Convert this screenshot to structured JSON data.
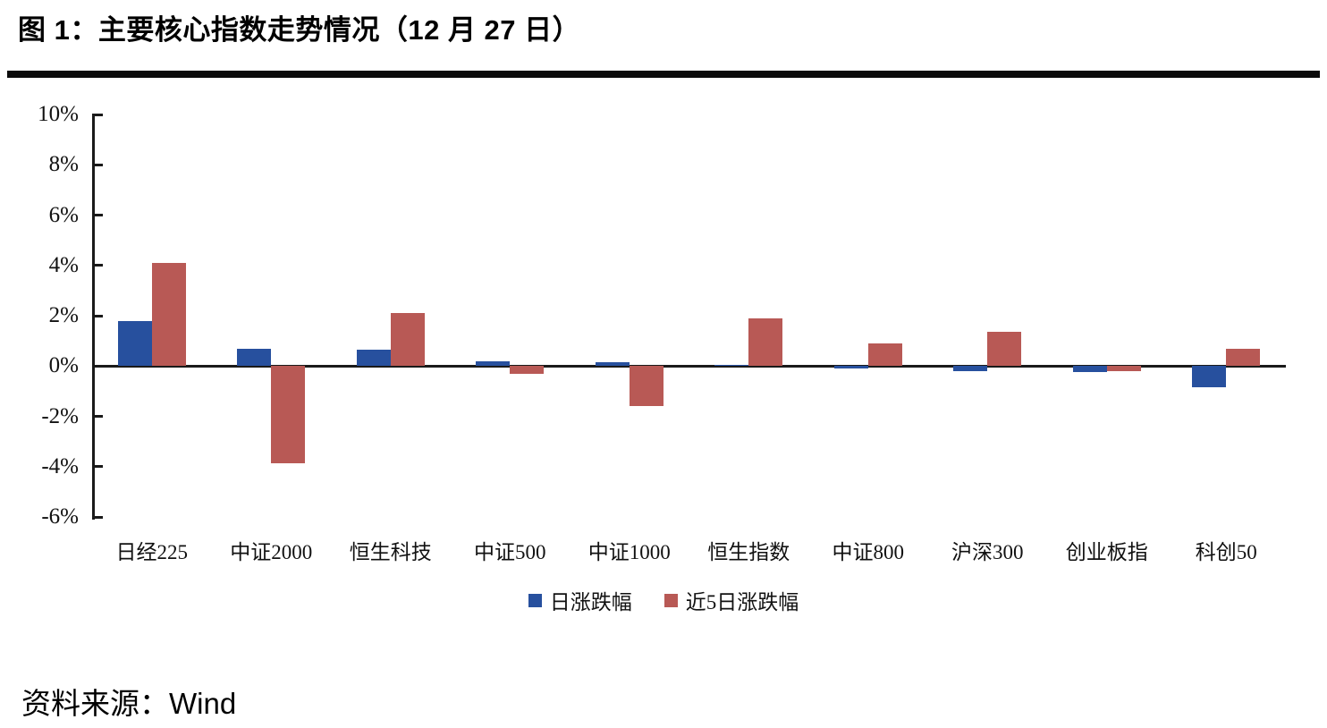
{
  "header": {
    "title": "图 1：主要核心指数走势情况（12 月 27 日）"
  },
  "footer": {
    "source": "资料来源：Wind"
  },
  "chart_data": {
    "type": "bar",
    "title": "主要核心指数走势情况（12 月 27 日）",
    "categories": [
      "日经225",
      "中证2000",
      "恒生科技",
      "中证500",
      "中证1000",
      "恒生指数",
      "中证800",
      "沪深300",
      "创业板指",
      "科创50"
    ],
    "series": [
      {
        "name": "日涨跌幅",
        "color": "#27509E",
        "values": [
          1.8,
          0.7,
          0.65,
          0.2,
          0.15,
          0.05,
          -0.1,
          -0.2,
          -0.25,
          -0.85
        ]
      },
      {
        "name": "近5日涨跌幅",
        "color": "#B85955",
        "values": [
          4.1,
          -3.85,
          2.1,
          -0.3,
          -1.6,
          1.9,
          0.9,
          1.35,
          -0.2,
          0.7
        ]
      }
    ],
    "xlabel": "",
    "ylabel": "",
    "ylim": [
      -6,
      10
    ],
    "y_ticks": [
      {
        "label": "10%",
        "value": 10
      },
      {
        "label": "8%",
        "value": 8
      },
      {
        "label": "6%",
        "value": 6
      },
      {
        "label": "4%",
        "value": 4
      },
      {
        "label": "2%",
        "value": 2
      },
      {
        "label": "0%",
        "value": 0
      },
      {
        "label": "-2%",
        "value": -2
      },
      {
        "label": "-4%",
        "value": -4
      },
      {
        "label": "-6%",
        "value": -6
      }
    ],
    "grid": false,
    "legend_position": "bottom",
    "axis_color": "#1a1a1a"
  }
}
